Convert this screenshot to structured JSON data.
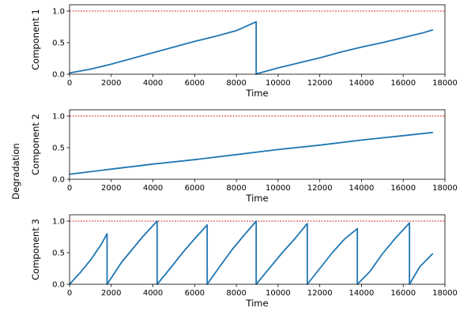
{
  "figure": {
    "shared_ylabel": "Degradation"
  },
  "colors": {
    "series": "#1f77b4",
    "threshold": "#d62728",
    "axes": "#000000",
    "background": "#ffffff"
  },
  "chart_data": [
    {
      "type": "line",
      "xlabel": "Time",
      "ylabel": "Component 1",
      "xlim": [
        0,
        18000
      ],
      "ylim": [
        0,
        1.1
      ],
      "xticks": [
        "0",
        "2000",
        "4000",
        "6000",
        "8000",
        "10000",
        "12000",
        "14000",
        "16000",
        "18000"
      ],
      "yticks": [
        "0.0",
        "0.5",
        "1.0"
      ],
      "threshold": 1.0,
      "grid": false,
      "series": [
        {
          "x": [
            0,
            1000,
            2000,
            3000,
            4000,
            5000,
            6000,
            7000,
            8000,
            8950,
            8950,
            9000,
            10000,
            11000,
            12000,
            13000,
            14000,
            15000,
            16000,
            17000,
            17400
          ],
          "y": [
            0.02,
            0.08,
            0.16,
            0.25,
            0.34,
            0.43,
            0.52,
            0.6,
            0.69,
            0.83,
            0.0,
            0.01,
            0.1,
            0.18,
            0.26,
            0.35,
            0.43,
            0.5,
            0.58,
            0.66,
            0.7
          ]
        }
      ]
    },
    {
      "type": "line",
      "xlabel": "Time",
      "ylabel": "Component 2",
      "xlim": [
        0,
        18000
      ],
      "ylim": [
        0,
        1.1
      ],
      "xticks": [
        "0",
        "2000",
        "4000",
        "6000",
        "8000",
        "10000",
        "12000",
        "14000",
        "16000",
        "18000"
      ],
      "yticks": [
        "0.0",
        "0.5",
        "1.0"
      ],
      "threshold": 1.0,
      "grid": false,
      "series": [
        {
          "x": [
            0,
            2000,
            4000,
            6000,
            8000,
            10000,
            12000,
            14000,
            16000,
            17400
          ],
          "y": [
            0.08,
            0.16,
            0.24,
            0.31,
            0.39,
            0.47,
            0.54,
            0.62,
            0.69,
            0.74
          ]
        }
      ]
    },
    {
      "type": "line",
      "xlabel": "Time",
      "ylabel": "Component 3",
      "xlim": [
        0,
        18000
      ],
      "ylim": [
        0,
        1.1
      ],
      "xticks": [
        "0",
        "2000",
        "4000",
        "6000",
        "8000",
        "10000",
        "12000",
        "14000",
        "16000",
        "18000"
      ],
      "yticks": [
        "0.0",
        "0.5",
        "1.0"
      ],
      "threshold": 1.0,
      "grid": false,
      "series": [
        {
          "x": [
            0,
            500,
            1000,
            1500,
            1800,
            1800,
            2500,
            3000,
            3500,
            4200,
            4200,
            4700,
            5500,
            6000,
            6600,
            6600,
            7200,
            7800,
            8300,
            8950,
            8950,
            9500,
            10200,
            10800,
            11400,
            11400,
            12000,
            12600,
            13200,
            13800,
            13800,
            14400,
            15000,
            15600,
            16300,
            16300,
            16800,
            17400
          ],
          "y": [
            0.0,
            0.18,
            0.38,
            0.62,
            0.8,
            0.0,
            0.35,
            0.55,
            0.75,
            1.0,
            0.0,
            0.2,
            0.53,
            0.72,
            0.94,
            0.0,
            0.28,
            0.55,
            0.75,
            1.0,
            0.0,
            0.22,
            0.5,
            0.72,
            0.96,
            0.0,
            0.25,
            0.5,
            0.72,
            0.88,
            0.0,
            0.2,
            0.48,
            0.72,
            0.97,
            0.0,
            0.28,
            0.48
          ]
        }
      ]
    }
  ]
}
